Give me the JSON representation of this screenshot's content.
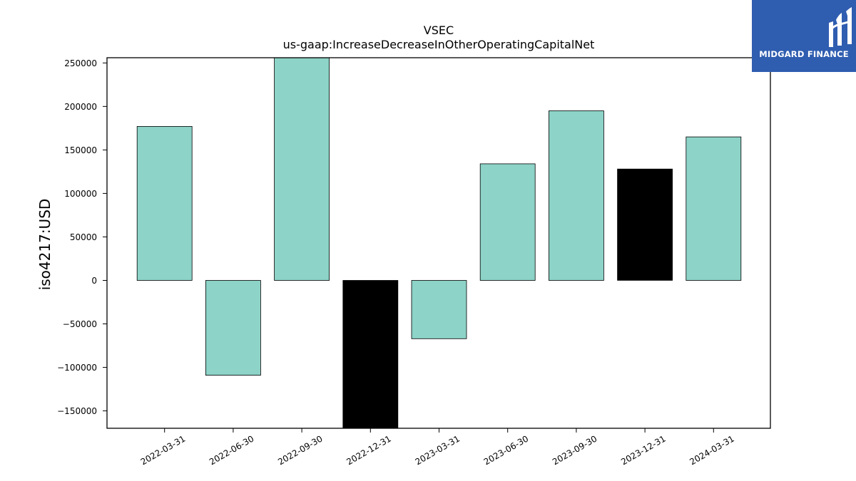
{
  "chart_data": {
    "type": "bar",
    "title": "VSEC",
    "subtitle": "us-gaap:IncreaseDecreaseInOtherOperatingCapitalNet",
    "xlabel": "",
    "ylabel": "iso4217:USD",
    "categories": [
      "2022-03-31",
      "2022-06-30",
      "2022-09-30",
      "2022-12-31",
      "2023-03-31",
      "2023-06-30",
      "2023-09-30",
      "2023-12-31",
      "2024-03-31"
    ],
    "values": [
      177000,
      -109000,
      258000,
      -175000,
      -67000,
      134000,
      195000,
      128000,
      165000
    ],
    "bar_colors": [
      "#8dd3c7",
      "#8dd3c7",
      "#8dd3c7",
      "#000000",
      "#8dd3c7",
      "#8dd3c7",
      "#8dd3c7",
      "#000000",
      "#8dd3c7"
    ],
    "ylim": [
      -170000,
      256000
    ],
    "yticks": [
      250000,
      200000,
      150000,
      100000,
      50000,
      0,
      -50000,
      -100000,
      -150000
    ],
    "ytick_labels": [
      "250000",
      "200000",
      "150000",
      "100000",
      "50000",
      "0",
      "−50000",
      "−100000",
      "−150000"
    ],
    "grid": false,
    "legend": "none"
  },
  "logo": {
    "text": "MIDGARD FINANCE",
    "color": "#2f5db0"
  }
}
